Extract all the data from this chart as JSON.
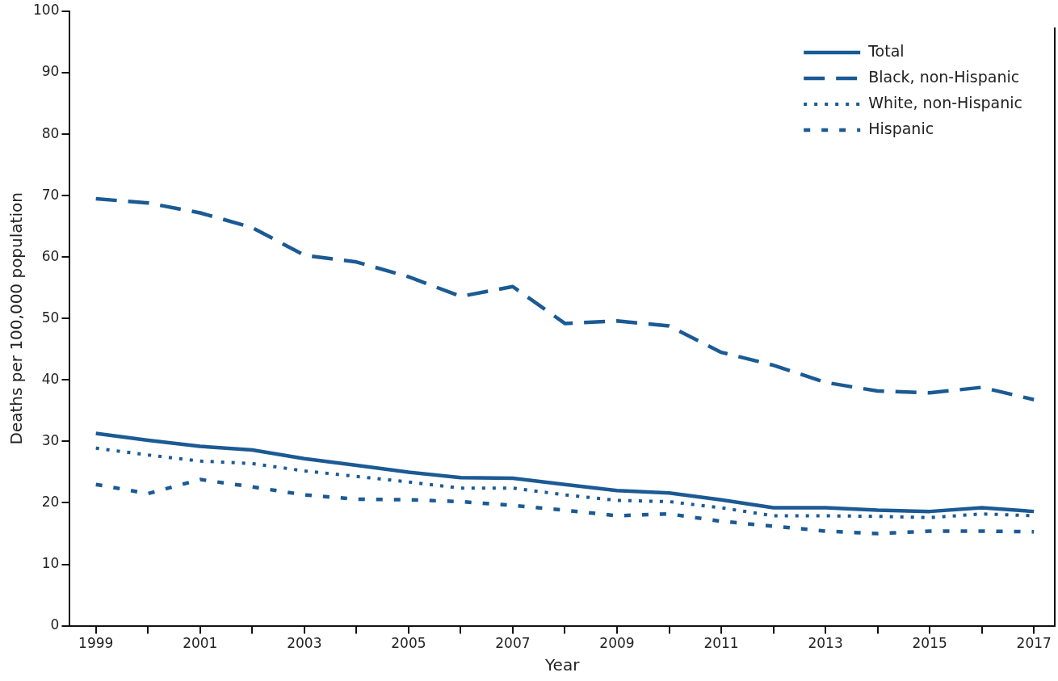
{
  "chart_data": {
    "type": "line",
    "xlabel": "Year",
    "ylabel": "Deaths per 100,000 population",
    "x": [
      1999,
      2000,
      2001,
      2002,
      2003,
      2004,
      2005,
      2006,
      2007,
      2008,
      2009,
      2010,
      2011,
      2012,
      2013,
      2014,
      2015,
      2016,
      2017
    ],
    "series": [
      {
        "name": "Total",
        "color": "#1b5a94",
        "line_style": "solid",
        "values": [
          31.3,
          30.2,
          29.2,
          28.6,
          27.2,
          26.1,
          25.0,
          24.1,
          24.0,
          23.0,
          22.0,
          21.6,
          20.5,
          19.2,
          19.2,
          18.8,
          18.6,
          19.2,
          18.6
        ]
      },
      {
        "name": "Black, non-Hispanic",
        "color": "#1b5a94",
        "line_style": "dashed",
        "values": [
          69.5,
          68.8,
          67.2,
          64.8,
          60.3,
          59.2,
          56.8,
          53.6,
          55.2,
          49.2,
          49.6,
          48.8,
          44.5,
          42.4,
          39.6,
          38.2,
          37.9,
          38.8,
          36.8
        ]
      },
      {
        "name": "White, non-Hispanic",
        "color": "#1b5a94",
        "line_style": "dotted",
        "values": [
          28.9,
          27.8,
          26.8,
          26.4,
          25.2,
          24.3,
          23.4,
          22.4,
          22.4,
          21.3,
          20.4,
          20.2,
          19.2,
          17.9,
          17.9,
          17.8,
          17.6,
          18.2,
          17.9
        ]
      },
      {
        "name": "Hispanic",
        "color": "#1b5a94",
        "line_style": "dashed",
        "values": [
          23.0,
          21.5,
          23.8,
          22.6,
          21.3,
          20.6,
          20.5,
          20.2,
          19.6,
          18.8,
          17.9,
          18.2,
          17.0,
          16.2,
          15.4,
          15.0,
          15.4,
          15.4,
          15.3
        ]
      }
    ],
    "xlim": [
      1998.5,
      2017.4
    ],
    "xticks": [
      1999,
      {
        "value": 2000,
        "label": null
      },
      2001,
      {
        "value": 2002,
        "label": null
      },
      2003,
      {
        "value": 2004,
        "label": null
      },
      2005,
      {
        "value": 2006,
        "label": null
      },
      2007,
      {
        "value": 2008,
        "label": null
      },
      2009,
      {
        "value": 2010,
        "label": null
      },
      2011,
      {
        "value": 2012,
        "label": null
      },
      2013,
      {
        "value": 2014,
        "label": null
      },
      2015,
      {
        "value": 2016,
        "label": null
      },
      2017
    ],
    "ylim": [
      0,
      100
    ],
    "yticks": [
      0,
      10,
      20,
      30,
      40,
      50,
      60,
      70,
      80,
      90,
      100
    ],
    "grid": false,
    "legend": "top right",
    "marker": "none"
  }
}
